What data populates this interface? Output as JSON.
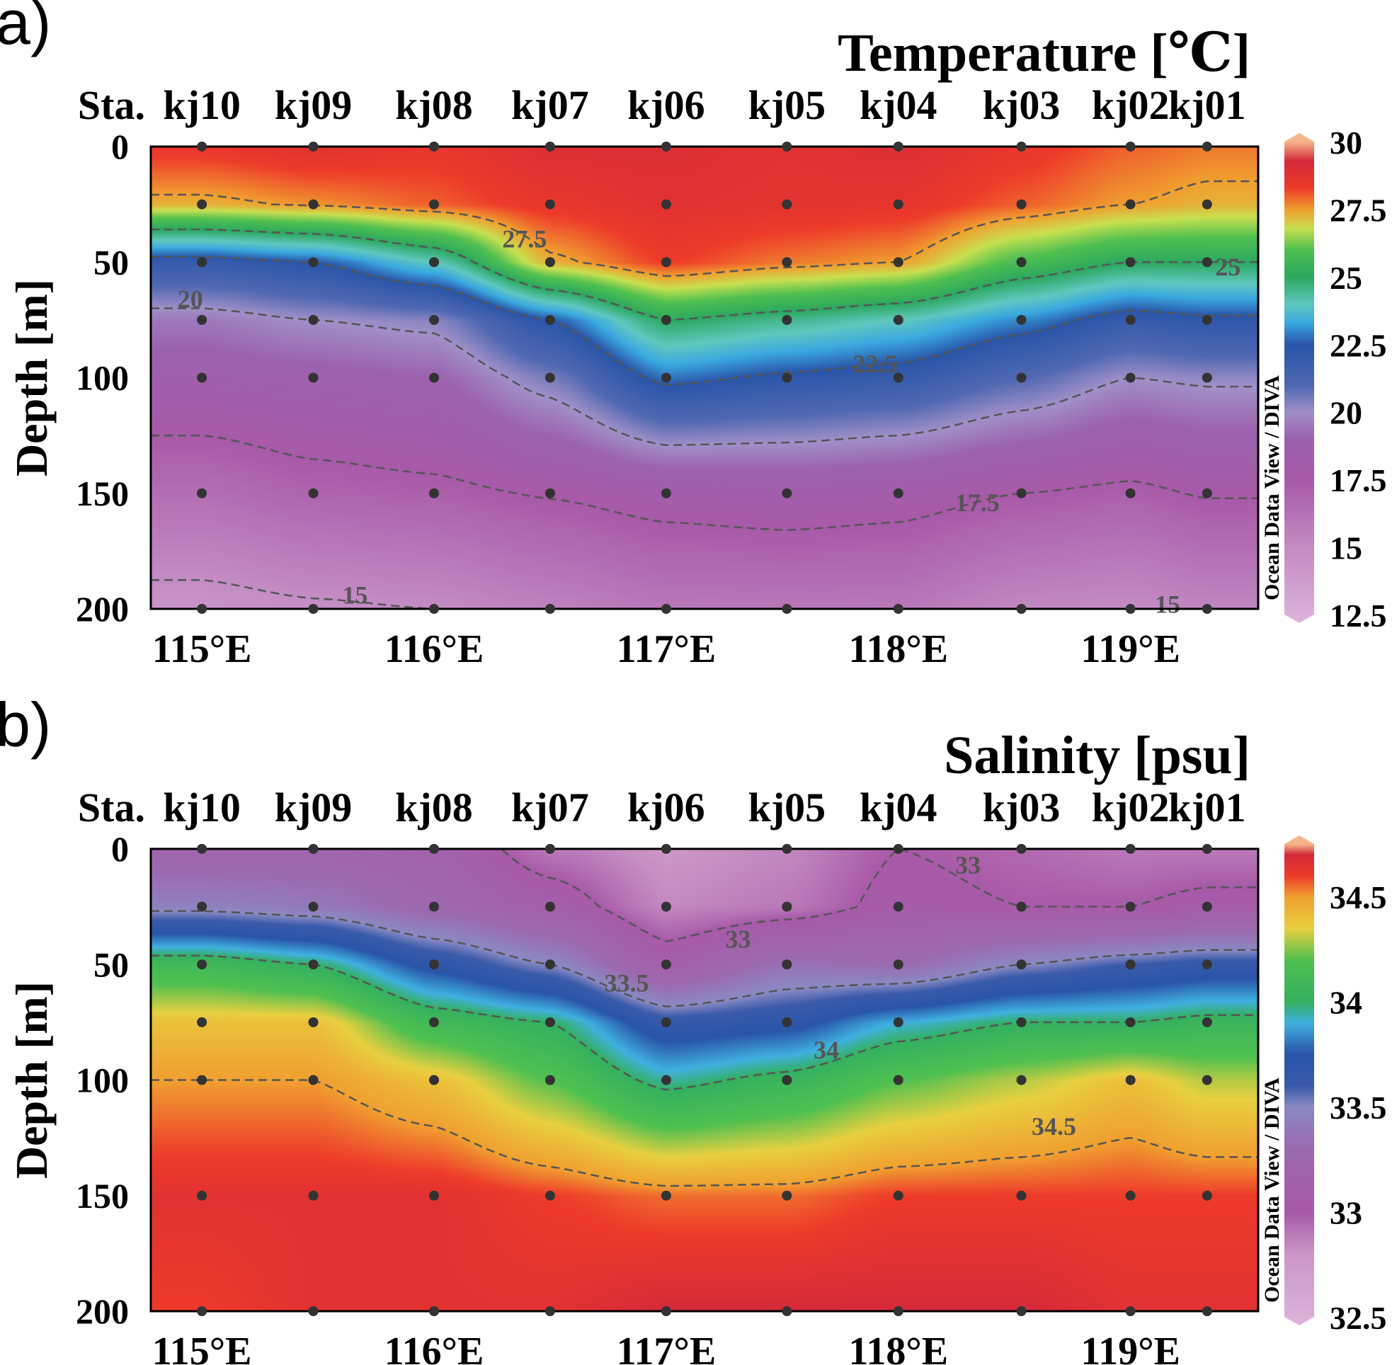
{
  "chart_data": [
    {
      "panel_label": "a)",
      "type": "heatmap",
      "title": "Temperature [℃]",
      "ylabel": "Depth [m]",
      "station_prefix": "Sta.",
      "watermark": "Ocean Data View / DIVA",
      "xlim": [
        114.78,
        119.55
      ],
      "ylim": [
        200,
        0
      ],
      "x_ticks": [
        115,
        116,
        117,
        118,
        119
      ],
      "x_tick_labels": [
        "115°E",
        "116°E",
        "117°E",
        "118°E",
        "119°E"
      ],
      "y_ticks": [
        0,
        50,
        100,
        150,
        200
      ],
      "y_tick_labels": [
        "0",
        "50",
        "100",
        "150",
        "200"
      ],
      "stations": [
        "kj10",
        "kj09",
        "kj08",
        "kj07",
        "kj06",
        "kj05",
        "kj04",
        "kj03",
        "kj02",
        "kj01"
      ],
      "station_lon": [
        115.0,
        115.48,
        116.0,
        116.5,
        117.0,
        117.52,
        118.0,
        118.53,
        119.0,
        119.33
      ],
      "depths": [
        0,
        25,
        50,
        75,
        100,
        150,
        200
      ],
      "values": [
        [
          28.5,
          27.3,
          22.0,
          19.5,
          18.5,
          16.5,
          14.5
        ],
        [
          28.8,
          27.6,
          22.5,
          20.0,
          18.7,
          17.0,
          14.8
        ],
        [
          28.5,
          28.0,
          24.0,
          20.3,
          19.0,
          17.2,
          15.0
        ],
        [
          29.0,
          28.5,
          27.3,
          22.5,
          20.5,
          17.6,
          15.5
        ],
        [
          29.0,
          28.8,
          28.3,
          25.0,
          22.8,
          18.0,
          16.0
        ],
        [
          28.8,
          28.7,
          27.8,
          24.5,
          22.3,
          18.2,
          16.0
        ],
        [
          29.0,
          28.6,
          27.5,
          24.0,
          22.0,
          18.0,
          16.0
        ],
        [
          28.5,
          28.0,
          25.8,
          23.0,
          21.0,
          17.5,
          15.2
        ],
        [
          28.0,
          27.5,
          25.0,
          22.0,
          20.0,
          17.2,
          15.0
        ],
        [
          27.8,
          27.3,
          25.0,
          22.3,
          20.2,
          17.6,
          15.3
        ]
      ],
      "color_range": [
        12.5,
        30
      ],
      "colorbar_ticks": [
        30,
        27.5,
        25,
        22.5,
        20,
        17.5,
        15,
        12.5
      ],
      "colorbar_tick_labels": [
        "30",
        "27.5",
        "25",
        "22.5",
        "20",
        "17.5",
        "15",
        "12.5"
      ],
      "colormap": [
        [
          12.5,
          "#dcb0d8"
        ],
        [
          15,
          "#c48cc4"
        ],
        [
          17.5,
          "#a85aa8"
        ],
        [
          19,
          "#9c62ae"
        ],
        [
          20,
          "#a090c8"
        ],
        [
          21,
          "#5068b2"
        ],
        [
          22.5,
          "#2a55a8"
        ],
        [
          23.3,
          "#3aa8e0"
        ],
        [
          24,
          "#60c8c0"
        ],
        [
          25,
          "#2ca860"
        ],
        [
          26,
          "#50c050"
        ],
        [
          26.8,
          "#c8e050"
        ],
        [
          27.5,
          "#f0a030"
        ],
        [
          28.3,
          "#ee3a2a"
        ],
        [
          29.3,
          "#d42a3a"
        ],
        [
          30,
          "#f5b48a"
        ]
      ],
      "contour_levels": [
        15,
        17.5,
        20,
        22.5,
        25,
        27.5
      ],
      "contour_labels": [
        {
          "text": "27.5",
          "lon": 116.39,
          "depth": 40
        },
        {
          "text": "25",
          "lon": 119.42,
          "depth": 52
        },
        {
          "text": "22.5",
          "lon": 117.9,
          "depth": 94
        },
        {
          "text": "20",
          "lon": 114.95,
          "depth": 66
        },
        {
          "text": "17.5",
          "lon": 118.34,
          "depth": 154
        },
        {
          "text": "15",
          "lon": 115.66,
          "depth": 194
        },
        {
          "text": "15",
          "lon": 119.16,
          "depth": 198
        }
      ],
      "contour_color": "#555555",
      "station_dot_color": "#333333"
    },
    {
      "panel_label": "b)",
      "type": "heatmap",
      "title": "Salinity [psu]",
      "ylabel": "Depth [m]",
      "station_prefix": "Sta.",
      "watermark": "Ocean Data View / DIVA",
      "xlim": [
        114.78,
        119.55
      ],
      "ylim": [
        200,
        0
      ],
      "x_ticks": [
        115,
        116,
        117,
        118,
        119
      ],
      "x_tick_labels": [
        "115°E",
        "116°E",
        "117°E",
        "118°E",
        "119°E"
      ],
      "y_ticks": [
        0,
        50,
        100,
        150,
        200
      ],
      "y_tick_labels": [
        "0",
        "50",
        "100",
        "150",
        "200"
      ],
      "stations": [
        "kj10",
        "kj09",
        "kj08",
        "kj07",
        "kj06",
        "kj05",
        "kj04",
        "kj03",
        "kj02",
        "kj01"
      ],
      "station_lon": [
        115.0,
        115.48,
        116.0,
        116.5,
        117.0,
        117.52,
        118.0,
        118.53,
        119.0,
        119.33
      ],
      "depths": [
        0,
        25,
        50,
        75,
        100,
        150,
        200
      ],
      "values": [
        [
          33.2,
          33.45,
          34.1,
          34.4,
          34.5,
          34.65,
          34.6
        ],
        [
          33.2,
          33.4,
          34.0,
          34.4,
          34.5,
          34.65,
          34.65
        ],
        [
          33.15,
          33.25,
          33.7,
          34.1,
          34.4,
          34.65,
          34.65
        ],
        [
          32.9,
          33.1,
          33.5,
          34.0,
          34.2,
          34.6,
          34.65
        ],
        [
          32.8,
          32.85,
          33.1,
          33.65,
          33.95,
          34.55,
          34.7
        ],
        [
          32.85,
          32.9,
          33.35,
          33.7,
          34.05,
          34.55,
          34.7
        ],
        [
          33.0,
          33.05,
          33.3,
          33.9,
          34.2,
          34.6,
          34.7
        ],
        [
          32.95,
          33.0,
          33.5,
          34.0,
          34.3,
          34.6,
          34.7
        ],
        [
          32.9,
          33.0,
          33.6,
          34.0,
          34.4,
          34.6,
          34.65
        ],
        [
          32.9,
          33.05,
          33.65,
          34.05,
          34.3,
          34.6,
          34.65
        ]
      ],
      "color_range": [
        32.5,
        34.75
      ],
      "colorbar_ticks": [
        34.5,
        34,
        33.5,
        33,
        32.5
      ],
      "colorbar_tick_labels": [
        "34.5",
        "34",
        "33.5",
        "33",
        "32.5"
      ],
      "colormap": [
        [
          32.5,
          "#dcb0d8"
        ],
        [
          32.8,
          "#cc98c8"
        ],
        [
          33,
          "#a85aa8"
        ],
        [
          33.3,
          "#9c6ab0"
        ],
        [
          33.5,
          "#8a8ac4"
        ],
        [
          33.6,
          "#3a5aaa"
        ],
        [
          33.75,
          "#2a55a8"
        ],
        [
          33.9,
          "#40b0e0"
        ],
        [
          34.0,
          "#34b060"
        ],
        [
          34.2,
          "#50c050"
        ],
        [
          34.35,
          "#e8d040"
        ],
        [
          34.5,
          "#f0a030"
        ],
        [
          34.6,
          "#ee3a2a"
        ],
        [
          34.7,
          "#d42a3a"
        ],
        [
          34.75,
          "#f5b48a"
        ]
      ],
      "contour_levels": [
        33,
        33.5,
        34,
        34.5
      ],
      "contour_labels": [
        {
          "text": "33",
          "lon": 118.3,
          "depth": 7
        },
        {
          "text": "33",
          "lon": 117.31,
          "depth": 39
        },
        {
          "text": "33.5",
          "lon": 116.83,
          "depth": 58
        },
        {
          "text": "34",
          "lon": 117.69,
          "depth": 87
        },
        {
          "text": "34.5",
          "lon": 118.67,
          "depth": 120
        }
      ],
      "contour_color": "#555555",
      "station_dot_color": "#333333"
    }
  ]
}
